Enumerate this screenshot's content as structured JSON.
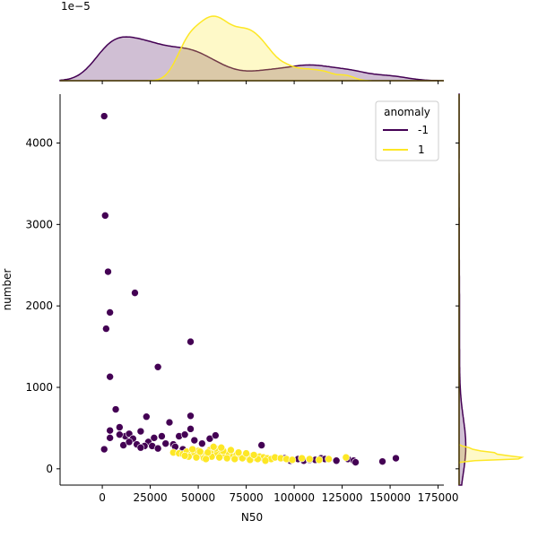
{
  "chart_data": {
    "type": "scatter",
    "title": "",
    "xlabel": "N50",
    "ylabel": "number",
    "xlim": [
      -22000,
      178000
    ],
    "ylim": [
      -200,
      4600
    ],
    "x_ticks": [
      0,
      25000,
      50000,
      75000,
      100000,
      125000,
      150000,
      175000
    ],
    "y_ticks": [
      0,
      1000,
      2000,
      3000,
      4000
    ],
    "grid": false,
    "legend": {
      "title": "anomaly",
      "placement": "top-right"
    },
    "top_marginal": {
      "type": "kde",
      "scale_label": "1e−5"
    },
    "right_marginal": {
      "type": "kde"
    },
    "series": [
      {
        "name": "-1",
        "color": "#440154",
        "x": [
          1000,
          1500,
          3000,
          4000,
          2000,
          17000,
          46000,
          29000,
          4000,
          23000,
          1000,
          7000,
          9000,
          4000,
          35000,
          46000,
          46000,
          12000,
          4000,
          14000,
          20000,
          9000,
          16000,
          24000,
          27000,
          31000,
          37000,
          40000,
          43000,
          48000,
          52000,
          56000,
          59000,
          18000,
          22000,
          11000,
          14000,
          20000,
          26000,
          29000,
          33000,
          38000,
          42000,
          50000,
          55000,
          62000,
          66000,
          72000,
          83000,
          88000,
          95000,
          98000,
          102000,
          105000,
          108000,
          111000,
          114000,
          116000,
          122000,
          128000,
          131000,
          132000,
          146000,
          153000,
          83000
        ],
        "y": [
          4330,
          3110,
          2420,
          1920,
          1720,
          2160,
          1560,
          1250,
          1130,
          640,
          240,
          730,
          510,
          470,
          570,
          650,
          490,
          400,
          380,
          430,
          460,
          420,
          370,
          330,
          380,
          400,
          300,
          400,
          420,
          350,
          310,
          370,
          410,
          300,
          280,
          290,
          330,
          260,
          280,
          250,
          310,
          270,
          240,
          220,
          200,
          180,
          160,
          150,
          290,
          120,
          130,
          100,
          120,
          100,
          110,
          110,
          130,
          120,
          100,
          120,
          100,
          80,
          90,
          130,
          140
        ]
      },
      {
        "name": "1",
        "color": "#fde725",
        "x": [
          37000,
          40000,
          42000,
          44000,
          46000,
          48000,
          50000,
          52000,
          54000,
          56000,
          58000,
          60000,
          62000,
          64000,
          66000,
          68000,
          70000,
          72000,
          74000,
          76000,
          78000,
          80000,
          82000,
          84000,
          86000,
          88000,
          90000,
          93000,
          96000,
          99000,
          104000,
          108000,
          113000,
          118000,
          127000,
          45000,
          49000,
          53000,
          57000,
          61000,
          65000,
          69000,
          73000,
          77000,
          81000,
          85000,
          47000,
          51000,
          55000,
          59000,
          63000,
          67000,
          71000,
          75000,
          79000,
          43000,
          58000,
          62000,
          54000
        ],
        "y": [
          200,
          190,
          180,
          210,
          170,
          190,
          220,
          160,
          180,
          230,
          200,
          190,
          170,
          160,
          180,
          150,
          170,
          160,
          150,
          140,
          160,
          130,
          150,
          140,
          130,
          120,
          140,
          130,
          120,
          110,
          130,
          120,
          110,
          120,
          140,
          150,
          140,
          130,
          150,
          140,
          130,
          120,
          130,
          110,
          120,
          100,
          240,
          210,
          200,
          250,
          220,
          230,
          200,
          190,
          170,
          160,
          270,
          260,
          120
        ]
      }
    ]
  }
}
